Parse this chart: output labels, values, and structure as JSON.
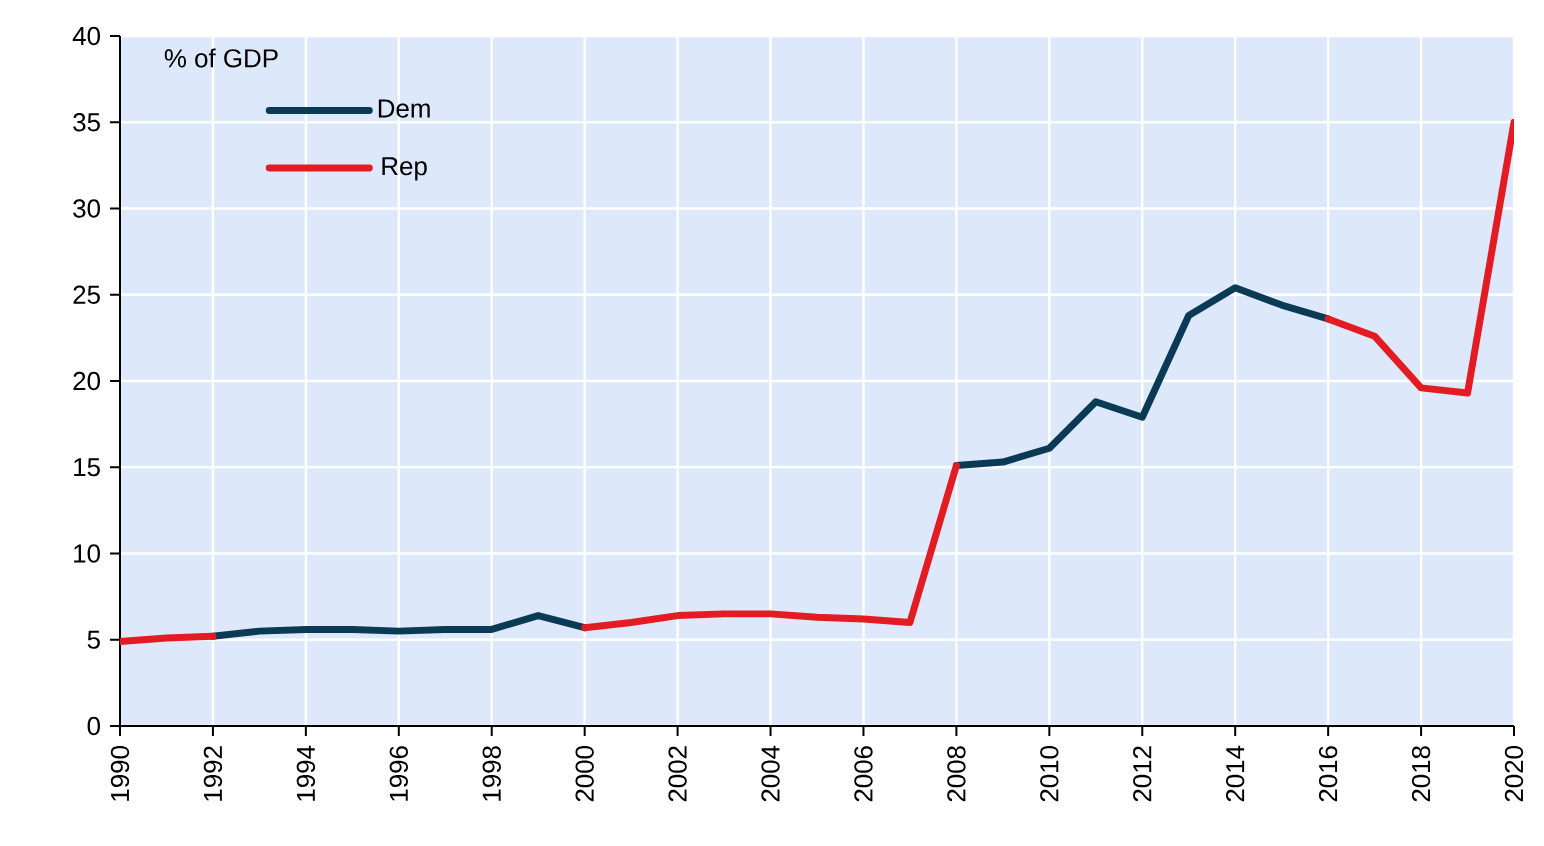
{
  "chart_data": {
    "type": "line",
    "ylabel": "% of GDP",
    "x": [
      1990,
      1991,
      1992,
      1993,
      1994,
      1995,
      1996,
      1997,
      1998,
      1999,
      2000,
      2001,
      2002,
      2003,
      2004,
      2005,
      2006,
      2007,
      2008,
      2009,
      2010,
      2011,
      2012,
      2013,
      2014,
      2015,
      2016,
      2017,
      2018,
      2019,
      2020
    ],
    "series": [
      {
        "name": "Dem",
        "color": "#0b3a55",
        "values": [
          null,
          null,
          5.2,
          5.5,
          5.6,
          5.6,
          5.5,
          5.6,
          5.6,
          6.4,
          5.7,
          null,
          null,
          null,
          null,
          null,
          null,
          null,
          15.1,
          15.3,
          16.1,
          18.8,
          17.9,
          23.8,
          25.4,
          24.4,
          23.6,
          null,
          null,
          null,
          null
        ]
      },
      {
        "name": "Rep",
        "color": "#e31b23",
        "values": [
          4.9,
          5.1,
          5.2,
          null,
          null,
          null,
          null,
          null,
          null,
          null,
          5.7,
          6.0,
          6.4,
          6.5,
          6.5,
          6.3,
          6.2,
          6.0,
          15.1,
          null,
          null,
          null,
          null,
          null,
          null,
          null,
          23.6,
          22.6,
          19.6,
          19.3,
          35.0
        ]
      }
    ],
    "xlim": [
      1990,
      2020
    ],
    "ylim": [
      0,
      40
    ],
    "xticks": [
      1990,
      1992,
      1994,
      1996,
      1998,
      2000,
      2002,
      2004,
      2006,
      2008,
      2010,
      2012,
      2014,
      2016,
      2018,
      2020
    ],
    "yticks": [
      0,
      5,
      10,
      15,
      20,
      25,
      30,
      35,
      40
    ],
    "grid": true,
    "legend": "top left",
    "marker": "none",
    "line_style": "solid"
  }
}
